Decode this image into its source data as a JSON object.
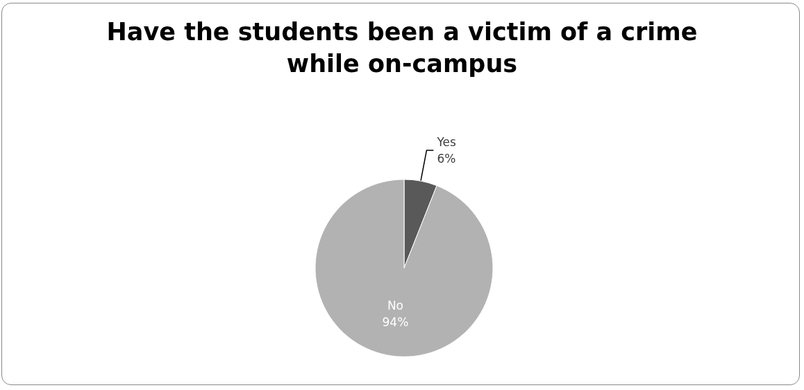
{
  "chart_data": {
    "type": "pie",
    "title": "Have the students been a victim of a crime\nwhile on-campus",
    "categories": [
      "Yes",
      "No"
    ],
    "values": [
      6,
      94
    ],
    "colors": [
      "#595959",
      "#b2b2b2"
    ],
    "value_labels": [
      "6%",
      "94%"
    ],
    "legend": false
  }
}
